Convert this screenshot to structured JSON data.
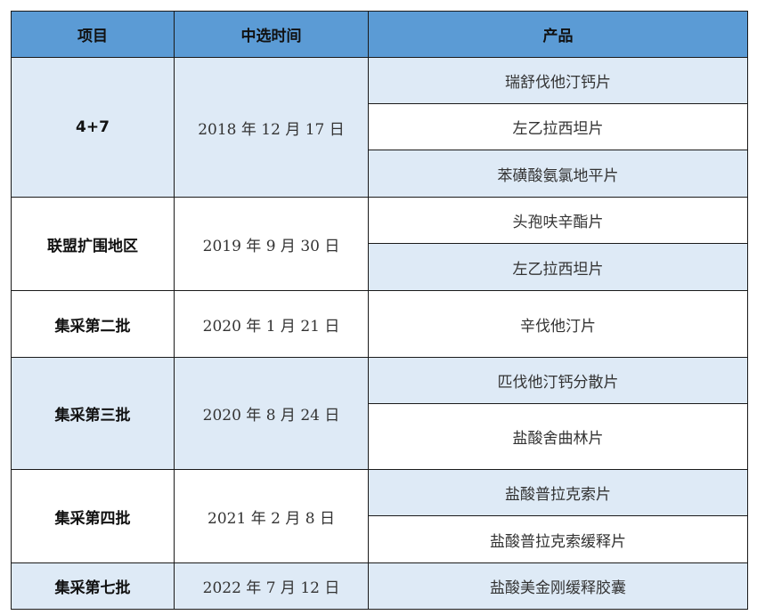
{
  "header": {
    "project": "项目",
    "date": "中选时间",
    "product": "产品"
  },
  "colors": {
    "header_bg": "#5b9bd5",
    "band_bg": "#deeaf6"
  },
  "rows": [
    {
      "project": "4+7",
      "date": "2018 年 12 月 17 日",
      "products": [
        "瑞舒伐他汀钙片",
        "左乙拉西坦片",
        "苯磺酸氨氯地平片"
      ]
    },
    {
      "project": "联盟扩围地区",
      "date": "2019 年 9 月 30 日",
      "products": [
        "头孢呋辛酯片",
        "左乙拉西坦片"
      ]
    },
    {
      "project": "集采第二批",
      "date": "2020 年 1 月 21 日",
      "products": [
        "辛伐他汀片"
      ]
    },
    {
      "project": "集采第三批",
      "date": "2020 年 8 月 24 日",
      "products": [
        "匹伐他汀钙分散片",
        "盐酸舍曲林片"
      ]
    },
    {
      "project": "集采第四批",
      "date": "2021 年 2 月 8 日",
      "products": [
        "盐酸普拉克索片",
        "盐酸普拉克索缓释片"
      ]
    },
    {
      "project": "集采第七批",
      "date": "2022 年 7 月 12 日",
      "products": [
        "盐酸美金刚缓释胶囊"
      ]
    }
  ]
}
